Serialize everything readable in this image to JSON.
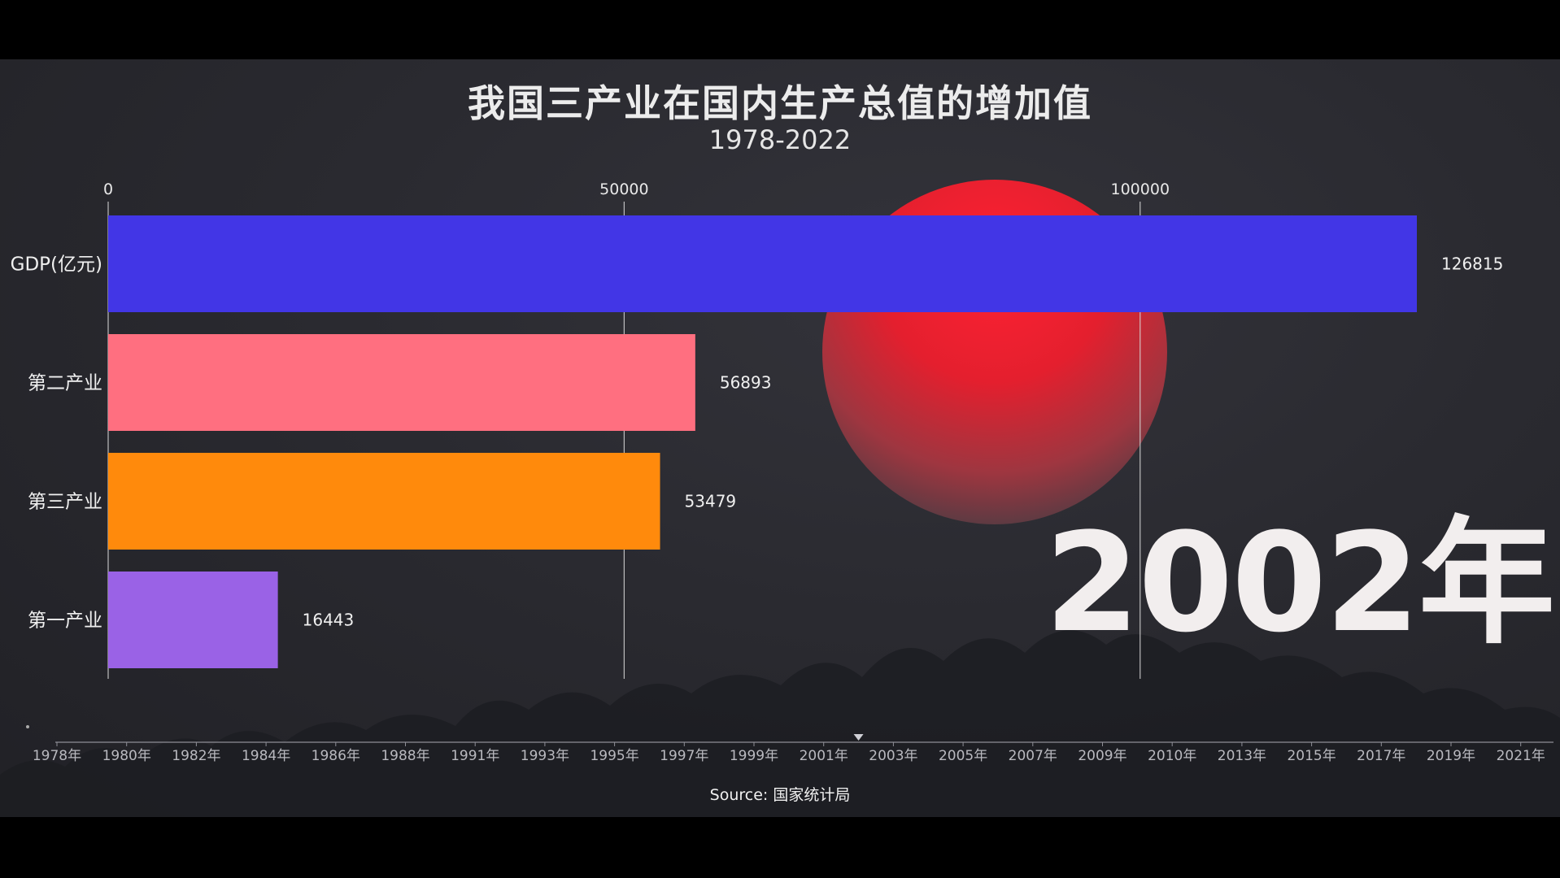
{
  "header": {
    "title": "我国三产业在国内生产总值的增加值",
    "subtitle": "1978-2022"
  },
  "current_year": "2002年",
  "source": "Source: 国家统计局",
  "colors": {
    "gdp": "#4236e6",
    "secondary": "#ff6f80",
    "tertiary": "#ff8a0c",
    "primary": "#9a62e6",
    "sun": "#e8202e"
  },
  "chart_data": {
    "type": "bar",
    "orientation": "horizontal",
    "title": "我国三产业在国内生产总值的增加值",
    "subtitle": "1978-2022",
    "categories": [
      "GDP(亿元)",
      "第二产业",
      "第三产业",
      "第一产业"
    ],
    "values": [
      126815,
      56893,
      53479,
      16443
    ],
    "xlim": [
      0,
      127000
    ],
    "x_ticks": [
      "0",
      "50000",
      "100000"
    ],
    "x_tick_values": [
      0,
      50000,
      100000
    ],
    "grid": true,
    "timeline": [
      "1978年",
      "1980年",
      "1982年",
      "1984年",
      "1986年",
      "1988年",
      "1991年",
      "1993年",
      "1995年",
      "1997年",
      "1999年",
      "2001年",
      "2003年",
      "2005年",
      "2007年",
      "2009年",
      "2010年",
      "2013年",
      "2015年",
      "2017年",
      "2019年",
      "2021年"
    ],
    "current_year": 2002
  }
}
